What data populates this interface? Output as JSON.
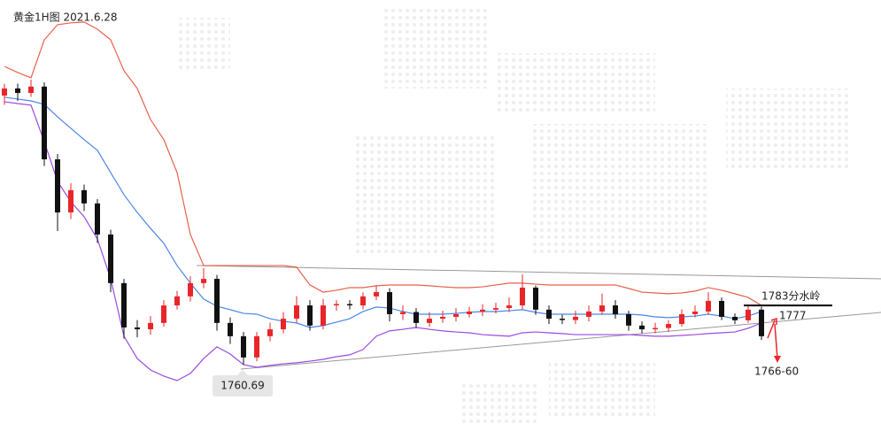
{
  "chart_data": {
    "type": "candlestick",
    "title": "黄金1H图 2021.6.28",
    "ylim": [
      1732.7,
      1898.0
    ],
    "up_color": "#e8262a",
    "down_color": "#111111",
    "open": [
      1862.0,
      1864.7,
      1863.0,
      1865.4,
      1838.0,
      1818.0,
      1826.4,
      1821.4,
      1809.7,
      1791.4,
      1774.7,
      1774.0,
      1776.4,
      1783.0,
      1786.4,
      1791.4,
      1793.0,
      1776.4,
      1771.4,
      1763.4,
      1771.4,
      1774.0,
      1778.0,
      1783.0,
      1775.4,
      1783.0,
      1783.5,
      1783.0,
      1786.4,
      1788.0,
      1779.7,
      1780.5,
      1776.4,
      1778.0,
      1778.7,
      1779.7,
      1780.7,
      1781.4,
      1782.0,
      1783.0,
      1789.7,
      1781.4,
      1778.0,
      1777.5,
      1778.7,
      1780.7,
      1783.0,
      1779.7,
      1775.4,
      1774.0,
      1774.5,
      1776.0,
      1779.7,
      1780.7,
      1784.7,
      1778.7,
      1777.4,
      1781.4
    ],
    "high": [
      1866.5,
      1866.5,
      1868.0,
      1867.0,
      1840.0,
      1829.0,
      1828.5,
      1823.0,
      1811.5,
      1793.0,
      1777.5,
      1779.0,
      1785.0,
      1788.5,
      1794.0,
      1797.0,
      1794.5,
      1778.5,
      1773.0,
      1773.0,
      1776.5,
      1780.5,
      1786.5,
      1785.0,
      1785.5,
      1785.0,
      1785.0,
      1788.0,
      1790.5,
      1789.5,
      1783.0,
      1782.0,
      1780.5,
      1781.0,
      1782.0,
      1782.5,
      1783.5,
      1784.0,
      1786.0,
      1794.7,
      1790.5,
      1783.0,
      1779.5,
      1781.0,
      1783.0,
      1787.5,
      1785.0,
      1781.0,
      1777.0,
      1776.5,
      1777.5,
      1781.5,
      1783.0,
      1788.0,
      1786.0,
      1780.0,
      1783.0,
      1782.5
    ],
    "low": [
      1858.5,
      1860.0,
      1861.5,
      1835.5,
      1811.0,
      1815.5,
      1818.5,
      1806.5,
      1788.0,
      1770.5,
      1771.0,
      1772.0,
      1775.0,
      1781.5,
      1784.5,
      1789.5,
      1773.5,
      1768.5,
      1760.7,
      1762.0,
      1769.5,
      1772.5,
      1776.5,
      1773.5,
      1774.0,
      1781.0,
      1781.5,
      1781.5,
      1785.0,
      1777.0,
      1777.5,
      1774.5,
      1775.0,
      1776.5,
      1777.0,
      1778.5,
      1779.0,
      1780.0,
      1780.5,
      1781.5,
      1779.5,
      1776.0,
      1776.0,
      1776.0,
      1777.0,
      1779.5,
      1778.0,
      1773.5,
      1772.5,
      1772.5,
      1773.0,
      1775.0,
      1778.5,
      1779.5,
      1777.5,
      1776.0,
      1776.5,
      1770.0
    ],
    "close": [
      1864.7,
      1863.0,
      1865.4,
      1838.0,
      1818.0,
      1826.4,
      1821.4,
      1809.7,
      1791.4,
      1774.7,
      1774.0,
      1776.4,
      1783.0,
      1786.4,
      1791.4,
      1793.0,
      1776.4,
      1771.4,
      1763.4,
      1771.4,
      1774.0,
      1778.0,
      1783.0,
      1775.4,
      1783.0,
      1783.5,
      1783.0,
      1786.4,
      1788.0,
      1779.7,
      1780.5,
      1776.4,
      1778.0,
      1778.7,
      1779.7,
      1780.7,
      1781.4,
      1782.0,
      1783.0,
      1789.7,
      1781.4,
      1778.0,
      1777.5,
      1778.7,
      1780.7,
      1783.0,
      1779.7,
      1775.4,
      1774.0,
      1774.5,
      1776.0,
      1779.7,
      1780.7,
      1784.7,
      1778.7,
      1777.4,
      1781.4,
      1771.4
    ],
    "series": [
      {
        "color": "#e8604a",
        "values": [
          1873.0,
          1870.7,
          1868.7,
          1883.0,
          1888.7,
          1889.4,
          1889.7,
          1887.0,
          1883.0,
          1871.4,
          1864.7,
          1853.0,
          1845.4,
          1833.0,
          1809.7,
          1798.0,
          1798.0,
          1798.0,
          1798.0,
          1798.0,
          1798.0,
          1798.0,
          1797.4,
          1790.7,
          1788.0,
          1788.7,
          1789.7,
          1789.7,
          1790.4,
          1790.7,
          1790.7,
          1790.7,
          1790.4,
          1790.0,
          1789.7,
          1789.7,
          1790.0,
          1790.7,
          1791.4,
          1791.4,
          1791.0,
          1790.7,
          1790.7,
          1790.7,
          1790.7,
          1790.7,
          1790.7,
          1789.4,
          1788.0,
          1787.7,
          1787.4,
          1787.7,
          1788.4,
          1789.7,
          1788.7,
          1787.4,
          1786.0,
          1783.0
        ]
      },
      {
        "color": "#4a86e8",
        "values": [
          1861.4,
          1860.7,
          1860.0,
          1858.7,
          1854.0,
          1849.7,
          1845.4,
          1841.4,
          1833.0,
          1824.7,
          1818.0,
          1812.0,
          1806.4,
          1798.0,
          1791.4,
          1785.4,
          1782.7,
          1781.4,
          1780.0,
          1779.7,
          1778.0,
          1777.0,
          1776.4,
          1774.7,
          1775.4,
          1776.7,
          1778.0,
          1780.7,
          1782.4,
          1782.0,
          1780.7,
          1779.7,
          1779.7,
          1779.7,
          1780.0,
          1780.4,
          1780.7,
          1780.7,
          1781.0,
          1781.4,
          1780.4,
          1779.7,
          1779.7,
          1779.7,
          1779.7,
          1779.7,
          1779.7,
          1779.7,
          1779.4,
          1778.7,
          1778.4,
          1778.7,
          1779.0,
          1779.7,
          1779.0,
          1778.0,
          1779.0,
          1780.7
        ]
      },
      {
        "color": "#9b4be0",
        "values": [
          1859.7,
          1859.0,
          1858.4,
          1844.7,
          1829.7,
          1822.0,
          1816.4,
          1808.0,
          1793.0,
          1771.4,
          1763.0,
          1758.7,
          1756.4,
          1754.7,
          1757.4,
          1763.0,
          1767.4,
          1764.7,
          1760.7,
          1759.7,
          1760.4,
          1761.0,
          1761.4,
          1762.0,
          1762.7,
          1763.7,
          1764.4,
          1766.4,
          1771.4,
          1773.4,
          1774.0,
          1774.7,
          1774.0,
          1773.4,
          1773.0,
          1772.7,
          1772.0,
          1771.7,
          1771.4,
          1772.7,
          1773.0,
          1772.7,
          1772.4,
          1772.0,
          1772.0,
          1772.0,
          1772.0,
          1772.0,
          1771.7,
          1771.4,
          1771.4,
          1771.7,
          1772.0,
          1772.4,
          1772.7,
          1773.0,
          1774.4,
          1776.4
        ]
      }
    ],
    "annotations": [
      {
        "text": "1783分水岭",
        "value": 1783
      },
      {
        "text": "1777",
        "value": 1777
      },
      {
        "text": "1766-60"
      },
      {
        "text": "1760.69",
        "value": 1760.69
      }
    ]
  }
}
